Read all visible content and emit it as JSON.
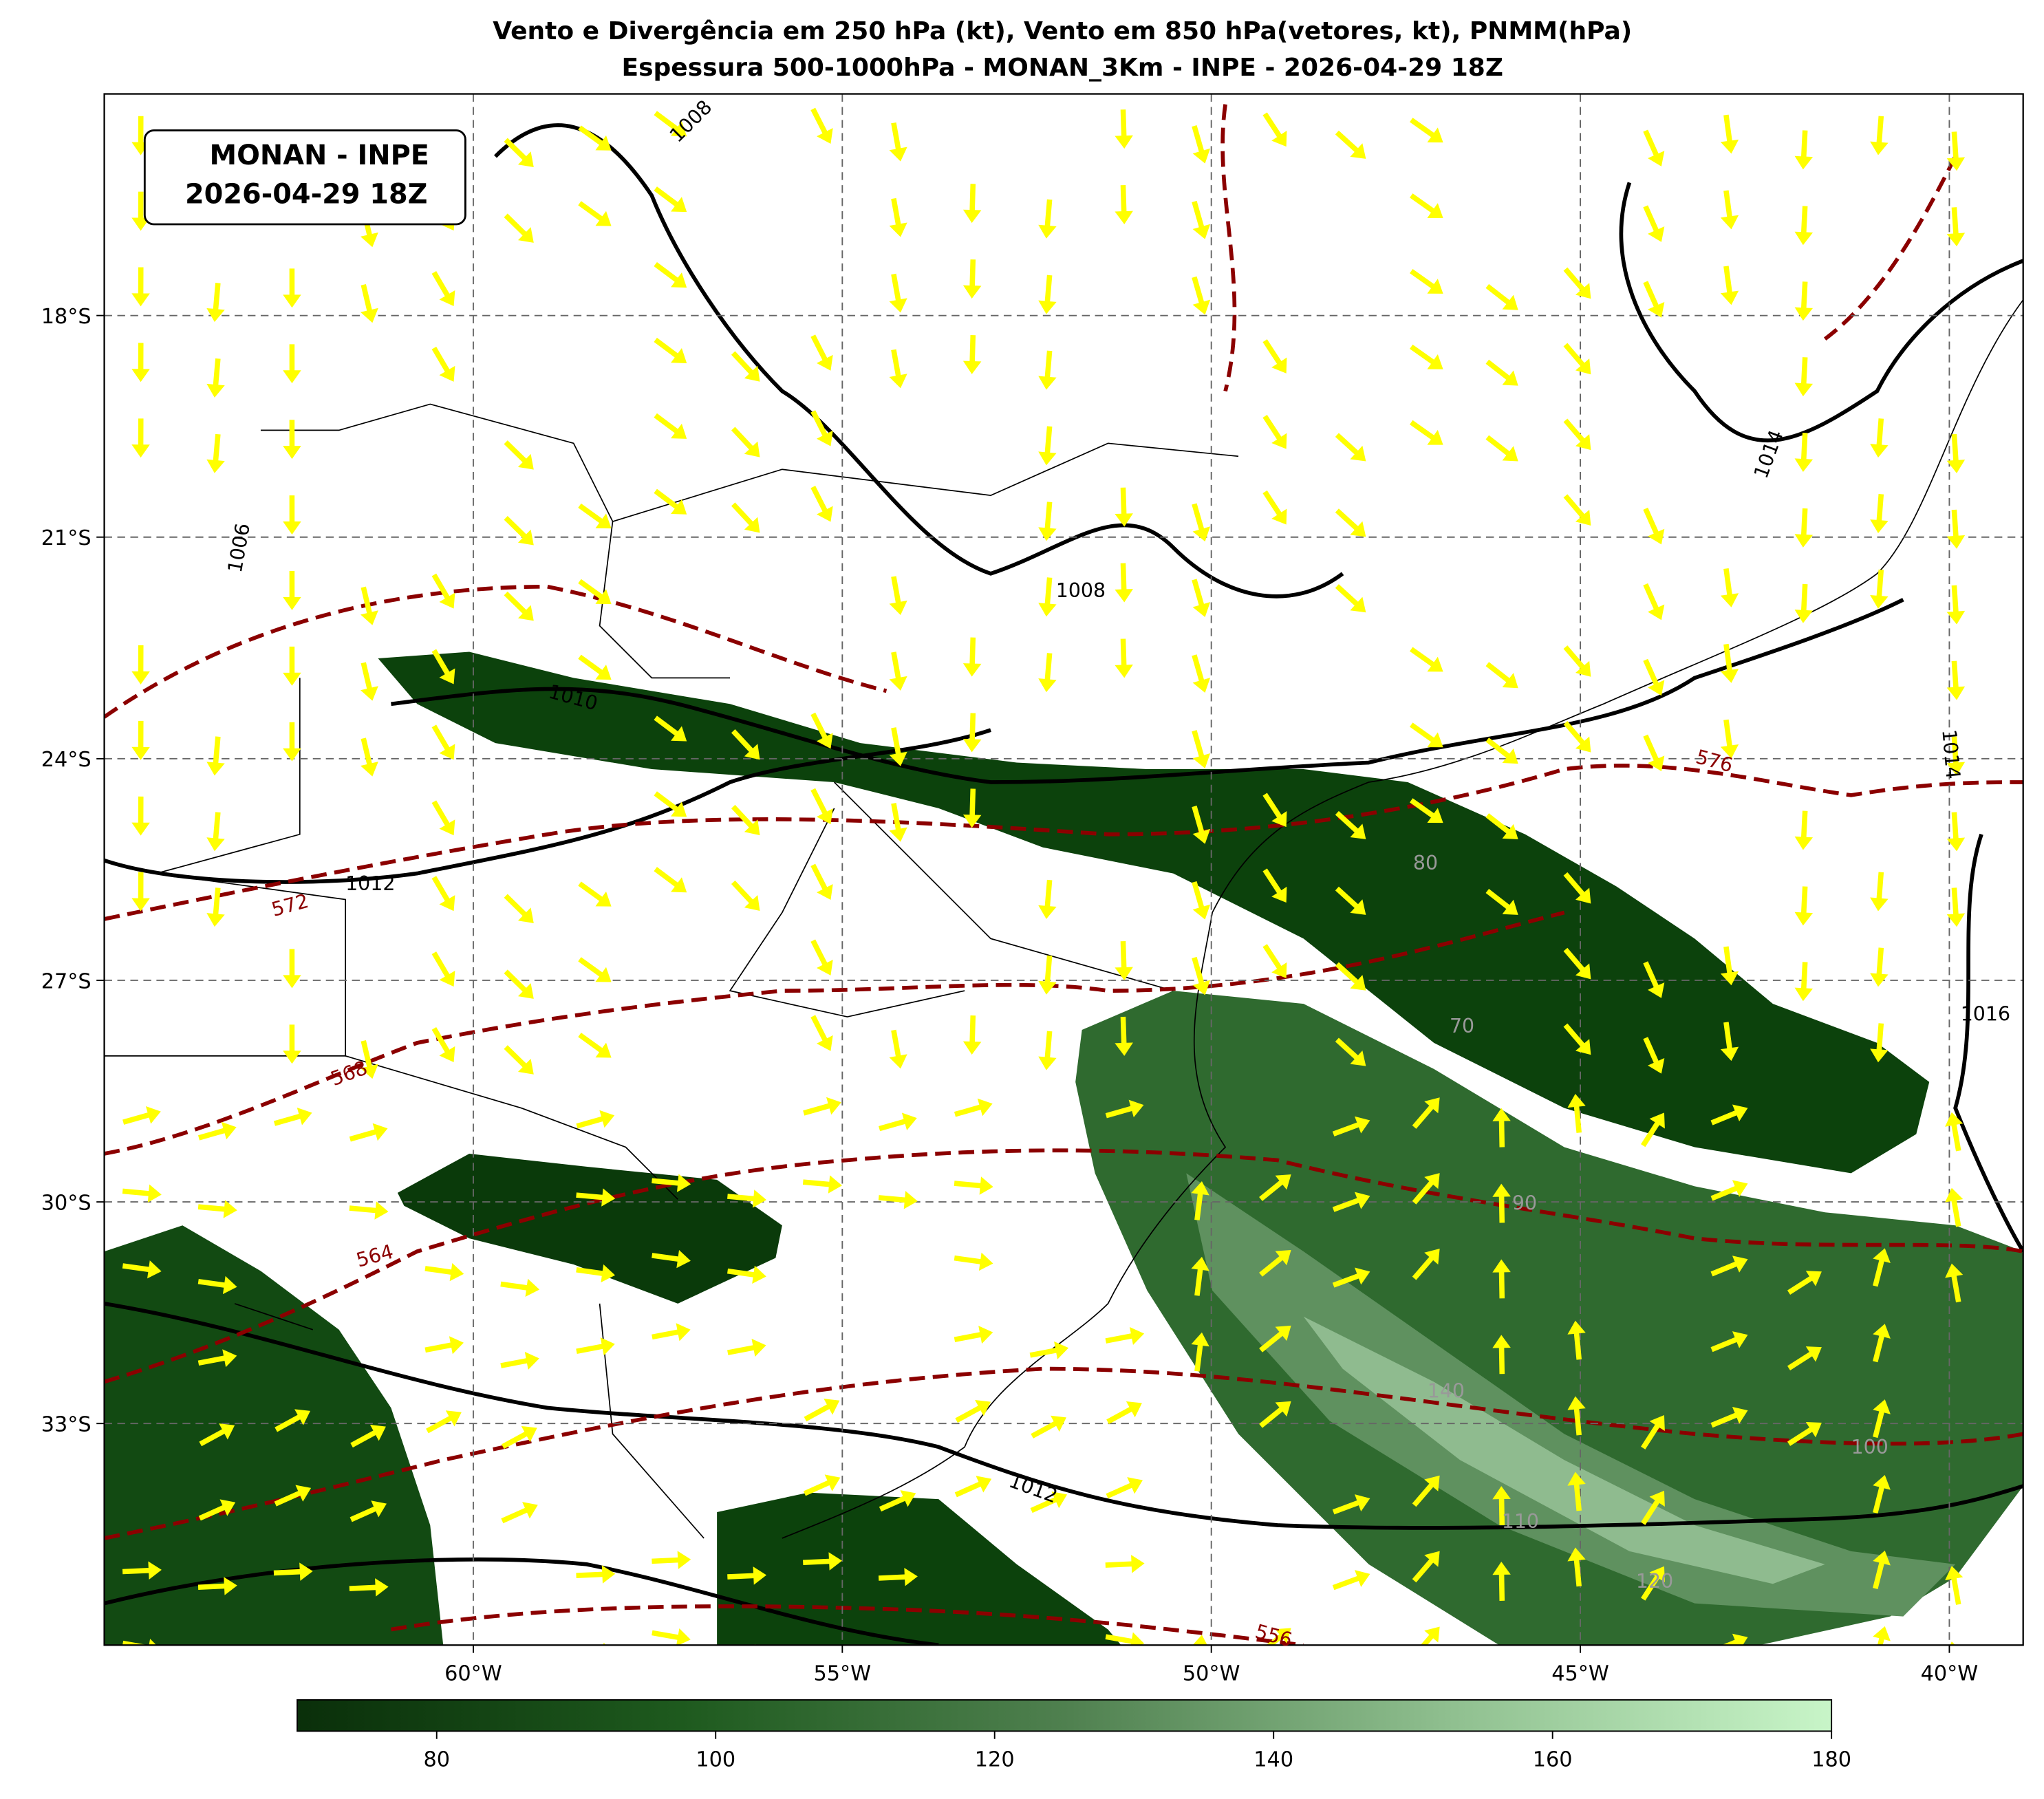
{
  "title": [
    "Vento e Divergência em 250 hPa (kt), Vento em 850 hPa(vetores, kt), PNMM(hPa)",
    "Espessura 500-1000hPa - MONAN_3Km - INPE - 2026-04-29 18Z"
  ],
  "label_box": [
    "MONAN - INPE",
    "2026-04-29 18Z"
  ],
  "map": {
    "xlim": [
      -65,
      -39
    ],
    "ylim": [
      -36,
      -15
    ],
    "xticks": [
      {
        "value": -60,
        "label": "60°W"
      },
      {
        "value": -55,
        "label": "55°W"
      },
      {
        "value": -50,
        "label": "50°W"
      },
      {
        "value": -45,
        "label": "45°W"
      },
      {
        "value": -40,
        "label": "40°W"
      }
    ],
    "yticks": [
      {
        "value": -18,
        "label": "18°S"
      },
      {
        "value": -21,
        "label": "21°S"
      },
      {
        "value": -24,
        "label": "24°S"
      },
      {
        "value": -27,
        "label": "27°S"
      },
      {
        "value": -30,
        "label": "30°S"
      },
      {
        "value": -33,
        "label": "33°S"
      }
    ],
    "grid": true
  },
  "contour_labels": [
    "1008",
    "1008",
    "1010",
    "1012",
    "1012",
    "1006",
    "1014",
    "1016",
    "1014",
    "576",
    "572",
    "568",
    "564",
    "556",
    "80",
    "70",
    "90",
    "100",
    "140",
    "110",
    "120"
  ],
  "colorbar": {
    "lim": [
      70,
      180
    ],
    "ticks": [
      80,
      100,
      120,
      140,
      160,
      180
    ]
  }
}
